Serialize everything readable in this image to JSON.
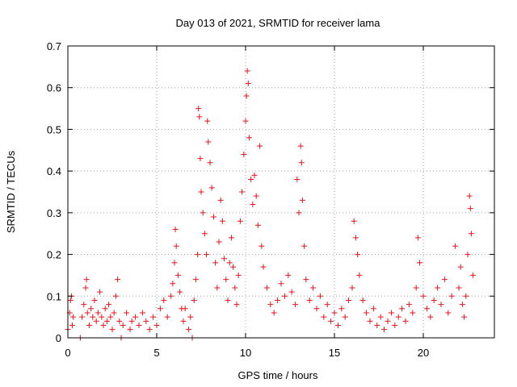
{
  "chart_data": {
    "type": "scatter",
    "title": "Day 013 of 2021, SRMTID for receiver lama",
    "xlabel": "GPS time / hours",
    "ylabel": "SRMTID / TECUs",
    "xlim": [
      0,
      24
    ],
    "ylim": [
      0,
      0.7
    ],
    "xticks": [
      0,
      5,
      10,
      15,
      20
    ],
    "yticks": [
      0,
      0.1,
      0.2,
      0.3,
      0.4,
      0.5,
      0.6,
      0.7
    ],
    "xtick_labels": [
      "0",
      "5",
      "10",
      "15",
      "20"
    ],
    "ytick_labels": [
      "0",
      "0.1",
      "0.2",
      "0.3",
      "0.4",
      "0.5",
      "0.6",
      "0.7"
    ],
    "grid": true,
    "marker": "+",
    "color": "#e8141c",
    "series": [
      {
        "name": "SRMTID",
        "points": [
          [
            0.0,
            0.02
          ],
          [
            0.1,
            0.06
          ],
          [
            0.15,
            0.09
          ],
          [
            0.2,
            0.1
          ],
          [
            0.25,
            0.03
          ],
          [
            0.3,
            0.05
          ],
          [
            0.7,
            0.0
          ],
          [
            0.8,
            0.05
          ],
          [
            0.9,
            0.08
          ],
          [
            1.0,
            0.12
          ],
          [
            1.05,
            0.14
          ],
          [
            1.1,
            0.06
          ],
          [
            1.2,
            0.03
          ],
          [
            1.3,
            0.07
          ],
          [
            1.4,
            0.05
          ],
          [
            1.5,
            0.09
          ],
          [
            1.6,
            0.04
          ],
          [
            1.7,
            0.06
          ],
          [
            1.8,
            0.11
          ],
          [
            1.9,
            0.05
          ],
          [
            2.0,
            0.03
          ],
          [
            2.1,
            0.07
          ],
          [
            2.2,
            0.04
          ],
          [
            2.3,
            0.08
          ],
          [
            2.4,
            0.05
          ],
          [
            2.5,
            0.02
          ],
          [
            2.6,
            0.06
          ],
          [
            2.7,
            0.1
          ],
          [
            2.8,
            0.14
          ],
          [
            2.9,
            0.04
          ],
          [
            3.0,
            0.0
          ],
          [
            3.1,
            0.03
          ],
          [
            3.3,
            0.06
          ],
          [
            3.5,
            0.02
          ],
          [
            3.6,
            0.04
          ],
          [
            3.8,
            0.05
          ],
          [
            4.0,
            0.03
          ],
          [
            4.2,
            0.06
          ],
          [
            4.4,
            0.04
          ],
          [
            4.6,
            0.02
          ],
          [
            4.8,
            0.05
          ],
          [
            5.0,
            0.03
          ],
          [
            5.2,
            0.07
          ],
          [
            5.4,
            0.09
          ],
          [
            5.6,
            0.05
          ],
          [
            5.8,
            0.1
          ],
          [
            5.9,
            0.13
          ],
          [
            6.0,
            0.18
          ],
          [
            6.05,
            0.26
          ],
          [
            6.1,
            0.22
          ],
          [
            6.2,
            0.15
          ],
          [
            6.3,
            0.11
          ],
          [
            6.4,
            0.07
          ],
          [
            6.5,
            0.04
          ],
          [
            6.6,
            0.07
          ],
          [
            6.8,
            0.02
          ],
          [
            6.9,
            0.05
          ],
          [
            7.0,
            0.0
          ],
          [
            7.1,
            0.09
          ],
          [
            7.2,
            0.14
          ],
          [
            7.3,
            0.2
          ],
          [
            7.35,
            0.55
          ],
          [
            7.4,
            0.53
          ],
          [
            7.45,
            0.43
          ],
          [
            7.5,
            0.35
          ],
          [
            7.6,
            0.3
          ],
          [
            7.7,
            0.25
          ],
          [
            7.8,
            0.2
          ],
          [
            7.85,
            0.52
          ],
          [
            7.9,
            0.47
          ],
          [
            8.0,
            0.42
          ],
          [
            8.1,
            0.36
          ],
          [
            8.2,
            0.29
          ],
          [
            8.3,
            0.18
          ],
          [
            8.4,
            0.12
          ],
          [
            8.5,
            0.23
          ],
          [
            8.6,
            0.33
          ],
          [
            8.7,
            0.28
          ],
          [
            8.8,
            0.19
          ],
          [
            8.9,
            0.14
          ],
          [
            9.0,
            0.09
          ],
          [
            9.1,
            0.18
          ],
          [
            9.2,
            0.24
          ],
          [
            9.3,
            0.17
          ],
          [
            9.4,
            0.12
          ],
          [
            9.5,
            0.08
          ],
          [
            9.6,
            0.15
          ],
          [
            9.7,
            0.28
          ],
          [
            9.8,
            0.35
          ],
          [
            9.9,
            0.44
          ],
          [
            10.0,
            0.52
          ],
          [
            10.05,
            0.58
          ],
          [
            10.1,
            0.64
          ],
          [
            10.15,
            0.61
          ],
          [
            10.2,
            0.48
          ],
          [
            10.3,
            0.38
          ],
          [
            10.4,
            0.32
          ],
          [
            10.5,
            0.39
          ],
          [
            10.6,
            0.34
          ],
          [
            10.7,
            0.27
          ],
          [
            10.8,
            0.46
          ],
          [
            10.9,
            0.22
          ],
          [
            11.0,
            0.17
          ],
          [
            11.2,
            0.12
          ],
          [
            11.4,
            0.08
          ],
          [
            11.6,
            0.06
          ],
          [
            11.8,
            0.09
          ],
          [
            12.0,
            0.13
          ],
          [
            12.2,
            0.1
          ],
          [
            12.4,
            0.15
          ],
          [
            12.6,
            0.11
          ],
          [
            12.8,
            0.08
          ],
          [
            12.9,
            0.38
          ],
          [
            13.0,
            0.3
          ],
          [
            13.1,
            0.46
          ],
          [
            13.15,
            0.42
          ],
          [
            13.2,
            0.33
          ],
          [
            13.3,
            0.22
          ],
          [
            13.4,
            0.14
          ],
          [
            13.6,
            0.09
          ],
          [
            13.8,
            0.12
          ],
          [
            14.0,
            0.07
          ],
          [
            14.2,
            0.1
          ],
          [
            14.4,
            0.05
          ],
          [
            14.6,
            0.08
          ],
          [
            14.8,
            0.04
          ],
          [
            15.0,
            0.06
          ],
          [
            15.2,
            0.03
          ],
          [
            15.4,
            0.07
          ],
          [
            15.6,
            0.05
          ],
          [
            15.8,
            0.09
          ],
          [
            16.0,
            0.12
          ],
          [
            16.1,
            0.28
          ],
          [
            16.2,
            0.24
          ],
          [
            16.3,
            0.2
          ],
          [
            16.4,
            0.15
          ],
          [
            16.6,
            0.09
          ],
          [
            16.8,
            0.06
          ],
          [
            17.0,
            0.04
          ],
          [
            17.2,
            0.07
          ],
          [
            17.4,
            0.03
          ],
          [
            17.6,
            0.05
          ],
          [
            17.8,
            0.02
          ],
          [
            18.0,
            0.04
          ],
          [
            18.2,
            0.06
          ],
          [
            18.4,
            0.03
          ],
          [
            18.6,
            0.05
          ],
          [
            18.8,
            0.07
          ],
          [
            19.0,
            0.04
          ],
          [
            19.2,
            0.08
          ],
          [
            19.4,
            0.06
          ],
          [
            19.6,
            0.12
          ],
          [
            19.7,
            0.24
          ],
          [
            19.8,
            0.18
          ],
          [
            20.0,
            0.1
          ],
          [
            20.2,
            0.07
          ],
          [
            20.4,
            0.05
          ],
          [
            20.6,
            0.09
          ],
          [
            20.8,
            0.12
          ],
          [
            21.0,
            0.08
          ],
          [
            21.2,
            0.14
          ],
          [
            21.4,
            0.06
          ],
          [
            21.6,
            0.1
          ],
          [
            21.8,
            0.22
          ],
          [
            22.0,
            0.12
          ],
          [
            22.1,
            0.17
          ],
          [
            22.2,
            0.08
          ],
          [
            22.3,
            0.05
          ],
          [
            22.4,
            0.1
          ],
          [
            22.5,
            0.2
          ],
          [
            22.6,
            0.34
          ],
          [
            22.65,
            0.31
          ],
          [
            22.7,
            0.25
          ],
          [
            22.8,
            0.15
          ]
        ]
      }
    ]
  }
}
